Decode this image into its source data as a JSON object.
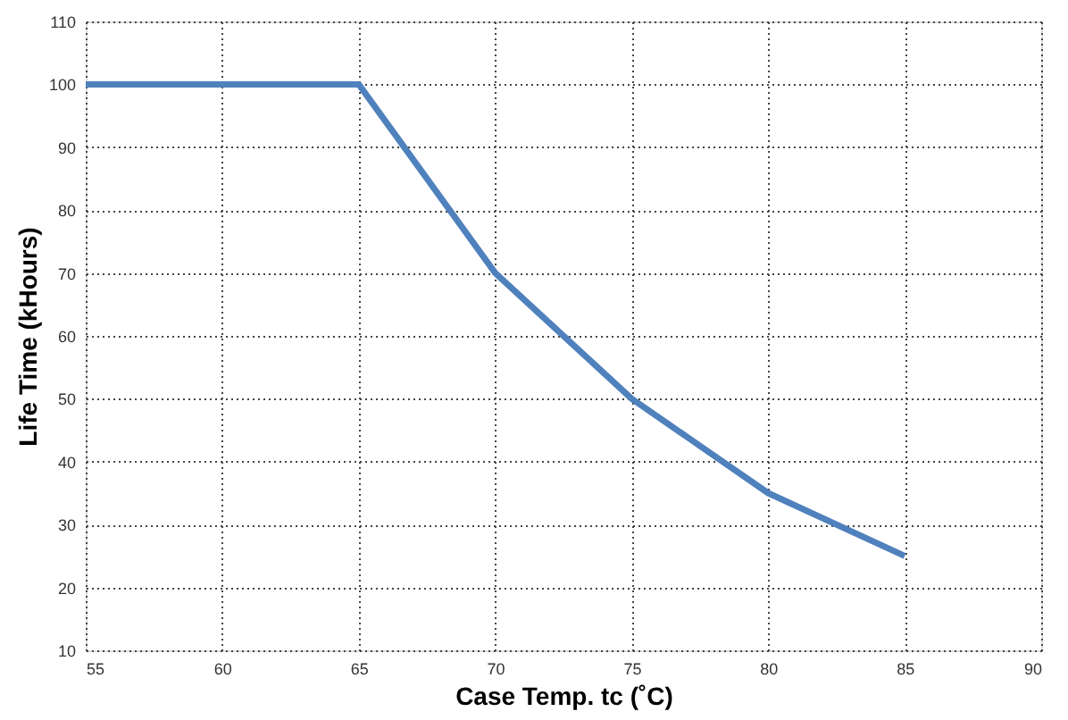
{
  "chart_data": {
    "type": "line",
    "xlabel": "Case Temp. tc (˚C)",
    "ylabel": "Life Time (kHours)",
    "x": [
      55,
      65,
      70,
      75,
      80,
      85
    ],
    "series": [
      {
        "color": "#4f81bd",
        "values": [
          100,
          100,
          70,
          50,
          35,
          25
        ]
      }
    ],
    "xlim": [
      55,
      90
    ],
    "xticks": [
      55,
      60,
      65,
      70,
      75,
      80,
      85,
      90
    ],
    "ylim": [
      10,
      110
    ],
    "yticks": [
      10,
      20,
      30,
      40,
      50,
      60,
      70,
      80,
      90,
      100,
      110
    ],
    "grid": true,
    "marker": "none",
    "line_style": "solid"
  }
}
